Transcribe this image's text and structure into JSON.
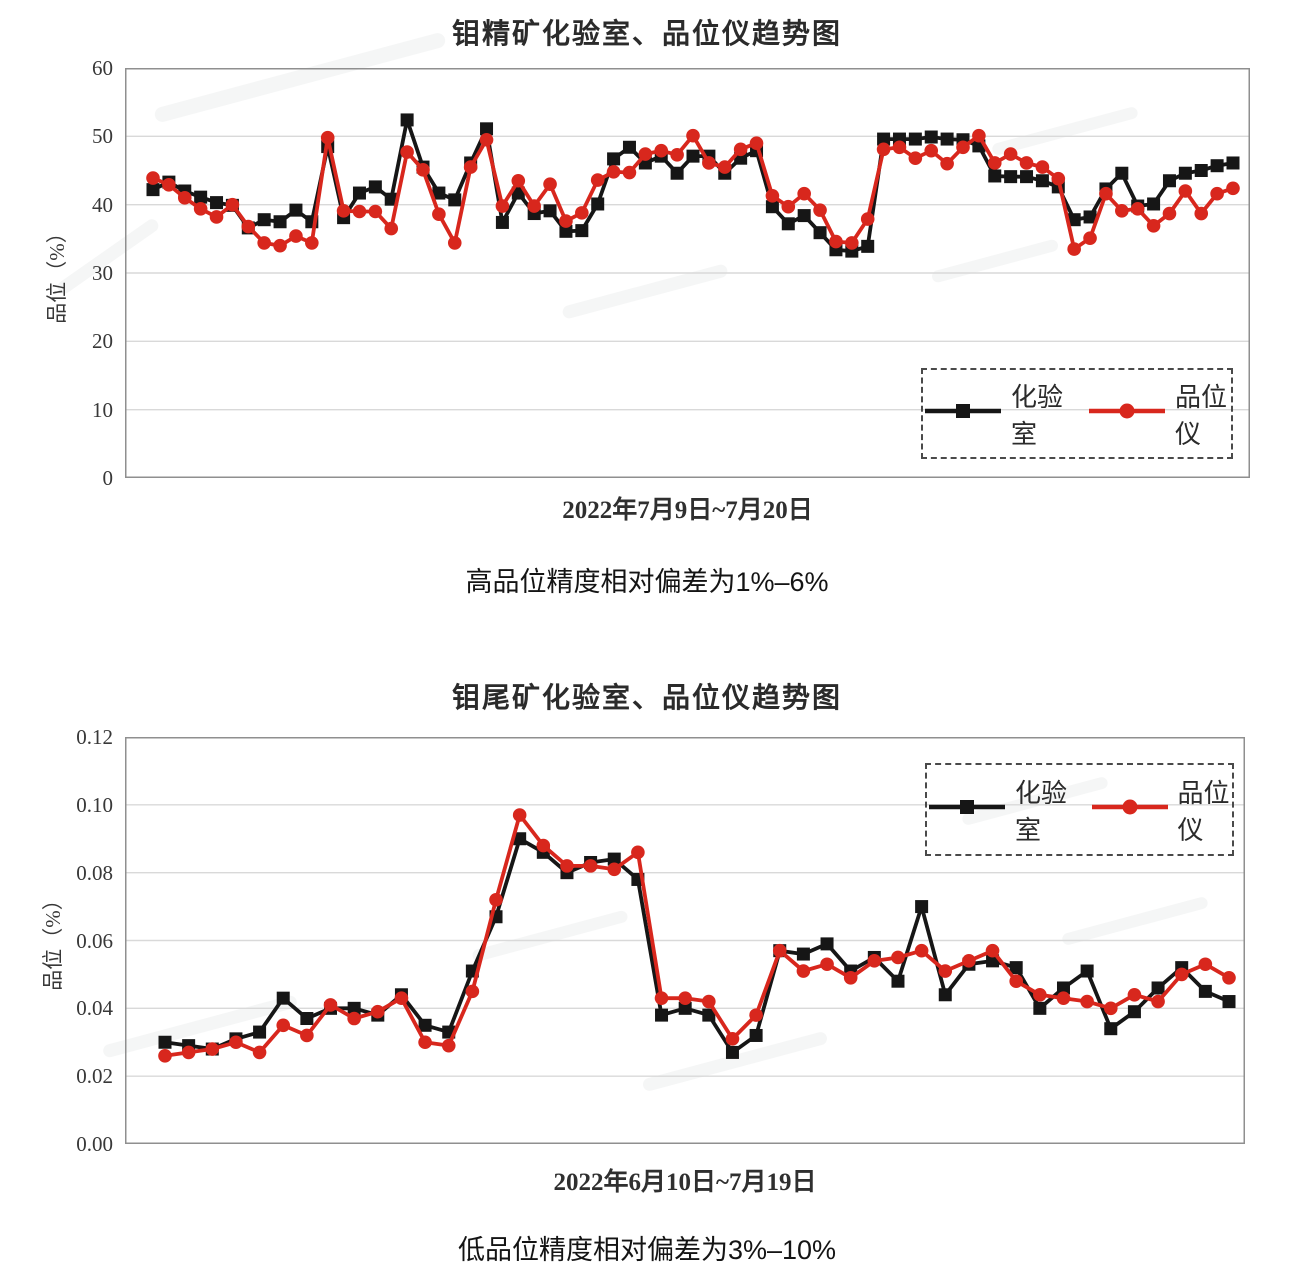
{
  "colors": {
    "lab_series": "#161616",
    "analyzer_series": "#d8271d",
    "gridline": "#d9d9d9",
    "plot_border": "#8f8f8f"
  },
  "chart_data": [
    {
      "type": "line",
      "title": "钼精矿化验室、品位仪趋势图",
      "xlabel": "2022年7月9日~7月20日",
      "ylabel": "品位（%）",
      "caption": "高品位精度相对偏差为1%–6%",
      "ylim": [
        0,
        60
      ],
      "ytick_step": 10,
      "ytick_decimals": 0,
      "grid": true,
      "legend_position": "inside-bottom-right",
      "series": [
        {
          "name": "化验室",
          "marker": "square",
          "color": "#161616",
          "values": [
            42.2,
            43.3,
            42.0,
            41.1,
            40.3,
            39.9,
            36.6,
            37.8,
            37.5,
            39.2,
            37.5,
            48.5,
            38.1,
            41.7,
            42.6,
            40.8,
            52.4,
            45.5,
            41.7,
            40.7,
            46.1,
            51.1,
            37.4,
            41.7,
            38.7,
            39.1,
            36.1,
            36.2,
            40.1,
            46.7,
            48.4,
            46.1,
            47.1,
            44.6,
            47.1,
            47.1,
            44.6,
            46.8,
            47.9,
            39.7,
            37.2,
            38.4,
            35.9,
            33.4,
            33.2,
            33.9,
            49.6,
            49.6,
            49.6,
            49.9,
            49.6,
            49.5,
            48.6,
            44.2,
            44.1,
            44.1,
            43.5,
            42.6,
            37.8,
            38.2,
            42.3,
            44.6,
            39.8,
            40.1,
            43.5,
            44.6,
            45.0,
            45.7,
            46.1
          ]
        },
        {
          "name": "品位仪",
          "marker": "circle",
          "color": "#d8271d",
          "values": [
            43.9,
            42.9,
            41.0,
            39.4,
            38.2,
            40.0,
            36.8,
            34.4,
            34.0,
            35.4,
            34.4,
            49.8,
            39.1,
            39.0,
            39.0,
            36.5,
            47.7,
            45.1,
            38.6,
            34.4,
            45.5,
            49.5,
            39.8,
            43.5,
            39.8,
            43.0,
            37.6,
            38.8,
            43.6,
            44.8,
            44.7,
            47.4,
            47.9,
            47.3,
            50.1,
            46.1,
            45.5,
            48.1,
            49.0,
            41.3,
            39.7,
            41.6,
            39.2,
            34.6,
            34.4,
            37.9,
            48.1,
            48.4,
            46.8,
            47.9,
            46.0,
            48.4,
            50.1,
            46.1,
            47.4,
            46.1,
            45.5,
            43.8,
            33.5,
            35.1,
            41.6,
            39.1,
            39.4,
            36.9,
            38.7,
            42.0,
            38.7,
            41.6,
            42.4
          ]
        }
      ]
    },
    {
      "type": "line",
      "title": "钼尾矿化验室、品位仪趋势图",
      "xlabel": "2022年6月10日~7月19日",
      "ylabel": "品位（%）",
      "caption": "低品位精度相对偏差为3%–10%",
      "ylim": [
        0,
        0.12
      ],
      "ytick_step": 0.02,
      "ytick_decimals": 2,
      "grid": true,
      "legend_position": "inside-top-right",
      "series": [
        {
          "name": "化验室",
          "marker": "square",
          "color": "#161616",
          "values": [
            0.03,
            0.029,
            0.028,
            0.031,
            0.033,
            0.043,
            0.037,
            0.04,
            0.04,
            0.038,
            0.044,
            0.035,
            0.033,
            0.051,
            0.067,
            0.09,
            0.086,
            0.08,
            0.083,
            0.084,
            0.078,
            0.038,
            0.04,
            0.038,
            0.027,
            0.032,
            0.057,
            0.056,
            0.059,
            0.051,
            0.055,
            0.048,
            0.07,
            0.044,
            0.053,
            0.054,
            0.052,
            0.04,
            0.046,
            0.051,
            0.034,
            0.039,
            0.046,
            0.052,
            0.045,
            0.042
          ]
        },
        {
          "name": "品位仪",
          "marker": "circle",
          "color": "#d8271d",
          "values": [
            0.026,
            0.027,
            0.028,
            0.03,
            0.027,
            0.035,
            0.032,
            0.041,
            0.037,
            0.039,
            0.043,
            0.03,
            0.029,
            0.045,
            0.072,
            0.097,
            0.088,
            0.082,
            0.082,
            0.081,
            0.086,
            0.043,
            0.043,
            0.042,
            0.031,
            0.038,
            0.057,
            0.051,
            0.053,
            0.049,
            0.054,
            0.055,
            0.057,
            0.051,
            0.054,
            0.057,
            0.048,
            0.044,
            0.043,
            0.042,
            0.04,
            0.044,
            0.042,
            0.05,
            0.053,
            0.049
          ]
        }
      ]
    }
  ]
}
